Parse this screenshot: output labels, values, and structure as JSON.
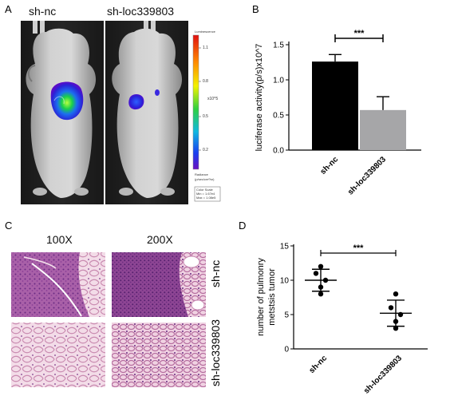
{
  "panels": {
    "a": {
      "letter": "A",
      "labels": [
        "sh-nc",
        "sh-loc339803"
      ],
      "scale": {
        "title": "Luminescence",
        "ticks": [
          "1.1",
          "0.8",
          "0.5",
          "0.2"
        ],
        "unit": "x10^5",
        "radiance": "Radiance",
        "radiance_units": "(p/sec/cm²/sr)",
        "color_scale": "Color Scale",
        "min": "Min = 1.67e4",
        "max": "Max = 1.08e5"
      }
    },
    "b": {
      "letter": "B"
    },
    "c": {
      "letter": "C",
      "magnifications": [
        "100X",
        "200X"
      ],
      "row_labels": [
        "sh-nc",
        "sh-loc339803"
      ]
    },
    "d": {
      "letter": "D"
    }
  },
  "chart_data": [
    {
      "type": "bar",
      "panel": "B",
      "categories": [
        "sh-nc",
        "sh-loc339803"
      ],
      "values": [
        1.26,
        0.57
      ],
      "errors": [
        0.1,
        0.19
      ],
      "colors": [
        "#000000",
        "#a6a6a8"
      ],
      "ylabel": "luciferase activity(p/s)x10^7",
      "ylim": [
        0,
        1.5
      ],
      "yticks": [
        "0.0",
        "0.5",
        "1.0",
        "1.5"
      ],
      "significance": "***"
    },
    {
      "type": "scatter",
      "panel": "D",
      "categories": [
        "sh-nc",
        "sh-loc339803"
      ],
      "points": [
        [
          12,
          11,
          10,
          9,
          8
        ],
        [
          8,
          6,
          5,
          4,
          3
        ]
      ],
      "means": [
        10,
        5.2
      ],
      "sd": [
        1.6,
        1.9
      ],
      "ylabel": "number of pulmonry metstsis tumor",
      "ylim": [
        0,
        15
      ],
      "yticks": [
        "0",
        "5",
        "10",
        "15"
      ],
      "significance": "***"
    }
  ]
}
